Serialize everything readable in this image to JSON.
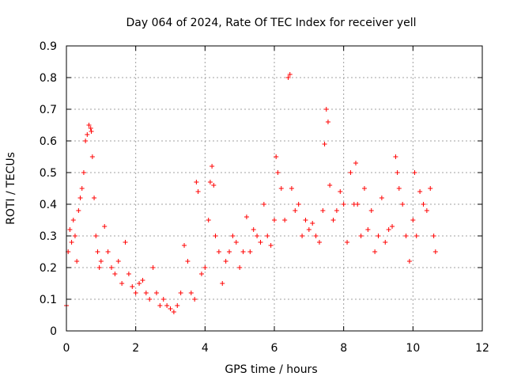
{
  "chart_data": {
    "type": "scatter",
    "title": "Day 064 of 2024, Rate Of TEC Index for receiver yell",
    "xlabel": "GPS time / hours",
    "ylabel": "ROTI / TECUs",
    "xlim": [
      0,
      12
    ],
    "ylim": [
      0,
      0.9
    ],
    "x_ticks": [
      0,
      2,
      4,
      6,
      8,
      10,
      12
    ],
    "x_tick_labels": [
      "0",
      "2",
      "4",
      "6",
      "8",
      "10",
      "12"
    ],
    "y_ticks": [
      0,
      0.1,
      0.2,
      0.3,
      0.4,
      0.5,
      0.6,
      0.7,
      0.8,
      0.9
    ],
    "y_tick_labels": [
      "0",
      "0.1",
      "0.2",
      "0.3",
      "0.4",
      "0.5",
      "0.6",
      "0.7",
      "0.8",
      "0.9"
    ],
    "grid": true,
    "marker": "+",
    "marker_color": "#ff0000",
    "series": [
      {
        "name": "ROTI",
        "x": [
          0.0,
          0.05,
          0.1,
          0.15,
          0.2,
          0.25,
          0.3,
          0.35,
          0.4,
          0.45,
          0.5,
          0.55,
          0.6,
          0.65,
          0.7,
          0.72,
          0.75,
          0.8,
          0.85,
          0.9,
          0.95,
          1.0,
          1.1,
          1.2,
          1.3,
          1.4,
          1.5,
          1.6,
          1.7,
          1.8,
          1.9,
          2.0,
          2.1,
          2.2,
          2.3,
          2.4,
          2.5,
          2.6,
          2.7,
          2.8,
          2.9,
          3.0,
          3.1,
          3.2,
          3.3,
          3.4,
          3.5,
          3.6,
          3.7,
          3.75,
          3.8,
          3.9,
          4.0,
          4.1,
          4.15,
          4.2,
          4.25,
          4.3,
          4.4,
          4.5,
          4.6,
          4.7,
          4.8,
          4.9,
          5.0,
          5.1,
          5.2,
          5.3,
          5.4,
          5.5,
          5.6,
          5.7,
          5.8,
          5.9,
          6.0,
          6.05,
          6.1,
          6.2,
          6.3,
          6.4,
          6.45,
          6.5,
          6.6,
          6.7,
          6.8,
          6.9,
          7.0,
          7.1,
          7.2,
          7.3,
          7.4,
          7.45,
          7.5,
          7.55,
          7.6,
          7.7,
          7.8,
          7.9,
          8.0,
          8.1,
          8.2,
          8.3,
          8.35,
          8.4,
          8.5,
          8.6,
          8.7,
          8.8,
          8.9,
          9.0,
          9.1,
          9.2,
          9.3,
          9.4,
          9.5,
          9.55,
          9.6,
          9.7,
          9.8,
          9.9,
          10.0,
          10.05,
          10.1,
          10.2,
          10.3,
          10.4,
          10.5,
          10.6,
          10.65
        ],
        "y": [
          0.08,
          0.25,
          0.32,
          0.28,
          0.35,
          0.3,
          0.22,
          0.38,
          0.42,
          0.45,
          0.5,
          0.6,
          0.62,
          0.65,
          0.64,
          0.63,
          0.55,
          0.42,
          0.3,
          0.25,
          0.2,
          0.22,
          0.33,
          0.25,
          0.2,
          0.18,
          0.22,
          0.15,
          0.28,
          0.18,
          0.14,
          0.12,
          0.15,
          0.16,
          0.12,
          0.1,
          0.2,
          0.12,
          0.08,
          0.1,
          0.08,
          0.07,
          0.06,
          0.08,
          0.12,
          0.27,
          0.22,
          0.12,
          0.1,
          0.47,
          0.44,
          0.18,
          0.2,
          0.35,
          0.47,
          0.52,
          0.46,
          0.3,
          0.25,
          0.15,
          0.22,
          0.25,
          0.3,
          0.28,
          0.2,
          0.25,
          0.36,
          0.25,
          0.32,
          0.3,
          0.28,
          0.4,
          0.3,
          0.27,
          0.35,
          0.55,
          0.5,
          0.45,
          0.35,
          0.8,
          0.81,
          0.45,
          0.38,
          0.4,
          0.3,
          0.35,
          0.32,
          0.34,
          0.3,
          0.28,
          0.38,
          0.59,
          0.7,
          0.66,
          0.46,
          0.35,
          0.38,
          0.44,
          0.4,
          0.28,
          0.5,
          0.4,
          0.53,
          0.4,
          0.3,
          0.45,
          0.32,
          0.38,
          0.25,
          0.3,
          0.42,
          0.28,
          0.32,
          0.33,
          0.55,
          0.5,
          0.45,
          0.4,
          0.3,
          0.22,
          0.35,
          0.5,
          0.3,
          0.44,
          0.4,
          0.38,
          0.45,
          0.3,
          0.25
        ]
      }
    ]
  }
}
